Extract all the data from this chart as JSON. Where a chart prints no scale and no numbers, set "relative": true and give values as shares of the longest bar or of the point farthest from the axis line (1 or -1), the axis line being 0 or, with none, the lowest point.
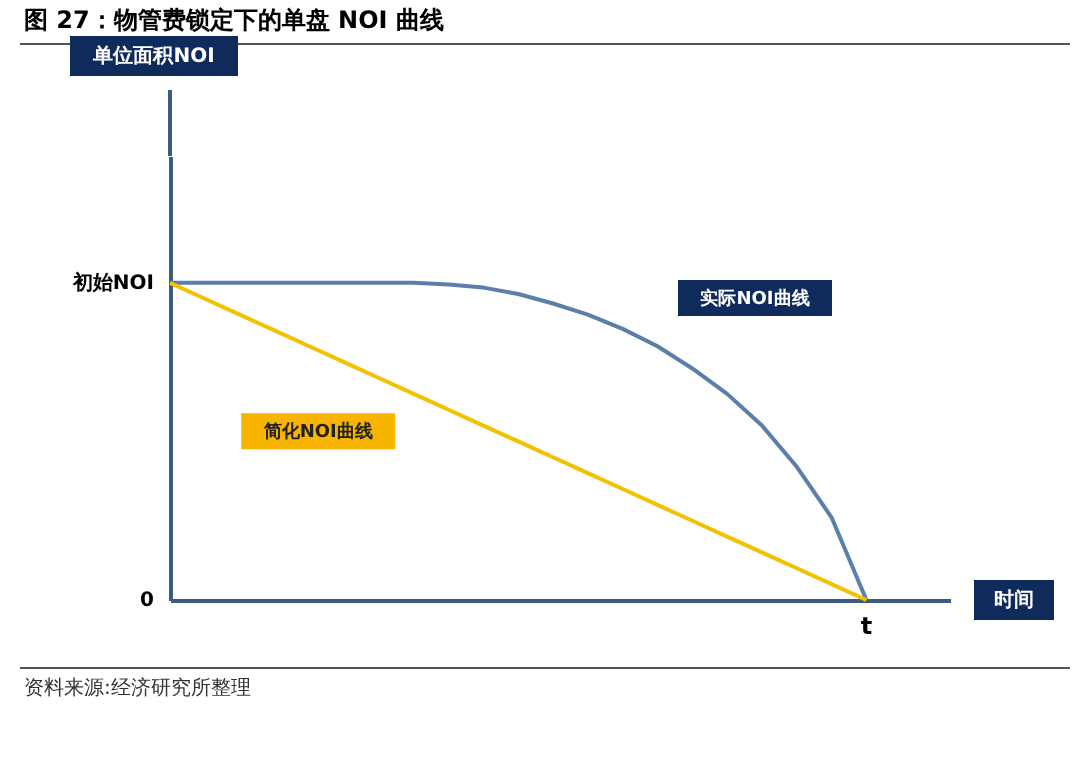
{
  "chart_data": {
    "type": "line",
    "title": "图 27：物管费锁定下的单盘 NOI 曲线",
    "relative": true,
    "marker": "none",
    "line_style": "solid",
    "categories": [
      null,
      null,
      null,
      null,
      null,
      null,
      null,
      null,
      null,
      null,
      null,
      null,
      null,
      null,
      null,
      null,
      null,
      null,
      null,
      null,
      null
    ],
    "series": [
      {
        "name": "实际NOI曲线",
        "color": "#5b7fa8",
        "values": [
          1,
          1,
          1,
          1,
          1,
          1,
          1,
          1,
          0.995,
          0.985,
          0.965,
          0.935,
          0.9,
          0.855,
          0.8,
          0.73,
          0.65,
          0.55,
          0.42,
          0.26,
          0
        ]
      },
      {
        "name": "简化NOI曲线",
        "color": "#f2c200",
        "values": [
          1,
          0.95,
          0.9,
          0.85,
          0.8,
          0.75,
          0.7,
          0.65,
          0.6,
          0.55,
          0.5,
          0.45,
          0.4,
          0.35,
          0.3,
          0.25,
          0.2,
          0.15,
          0.1,
          0.05,
          0
        ]
      }
    ],
    "annotations": [
      "单位面积NOI",
      "初始NOI",
      "0",
      "时间",
      "t",
      "资料来源:经济研究所整理"
    ]
  }
}
